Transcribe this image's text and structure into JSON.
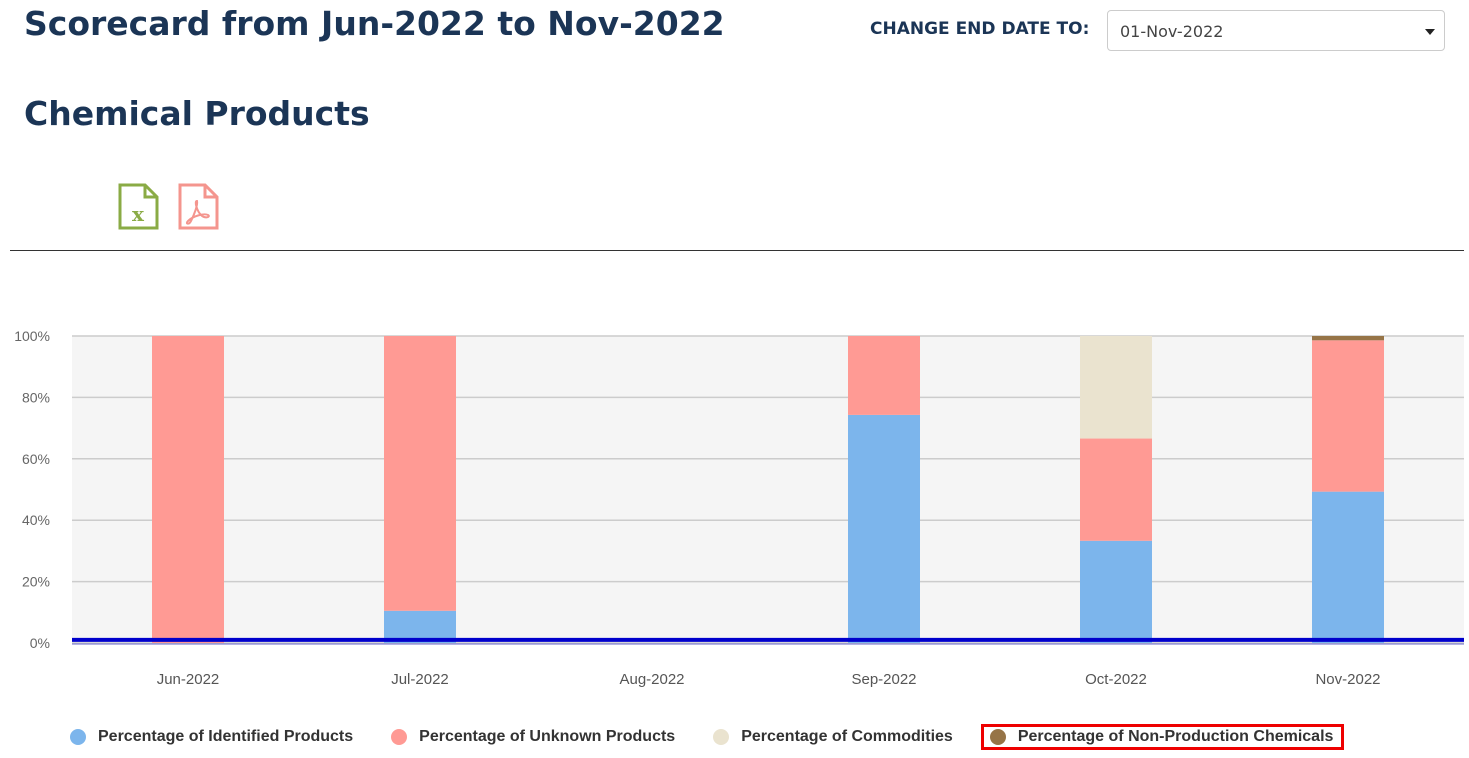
{
  "header": {
    "title": "Scorecard from Jun-2022 to Nov-2022",
    "subtitle": "Chemical Products",
    "end_date_label": "CHANGE END DATE TO:",
    "end_date_value": "01-Nov-2022"
  },
  "exports": [
    {
      "icon": "excel-file-icon",
      "color": "#8aab45"
    },
    {
      "icon": "pdf-file-icon",
      "color": "#f4958e"
    }
  ],
  "chart_data": {
    "type": "bar",
    "stacked": true,
    "categories": [
      "Jun-2022",
      "Jul-2022",
      "Aug-2022",
      "Sep-2022",
      "Oct-2022",
      "Nov-2022"
    ],
    "yticks": [
      "0%",
      "20%",
      "40%",
      "60%",
      "80%",
      "100%"
    ],
    "ylim": [
      0,
      100
    ],
    "grid": true,
    "legend_position": "bottom",
    "reference_line": {
      "value": 1,
      "color": "#0000cc"
    },
    "series": [
      {
        "name": "Percentage of Identified Products",
        "color": "#7cb5ec",
        "values": [
          0,
          10.5,
          0,
          74.3,
          33.3,
          49.3
        ]
      },
      {
        "name": "Percentage of Unknown Products",
        "color": "#ff9a94",
        "values": [
          100,
          89.5,
          0,
          25.7,
          33.3,
          49.3
        ]
      },
      {
        "name": "Percentage of Commodities",
        "color": "#eae3cf",
        "values": [
          0,
          0,
          0,
          0,
          33.4,
          0
        ]
      },
      {
        "name": "Percentage of Non-Production Chemicals",
        "color": "#967447",
        "values": [
          0,
          0,
          0,
          0,
          0,
          1.4
        ]
      }
    ]
  }
}
